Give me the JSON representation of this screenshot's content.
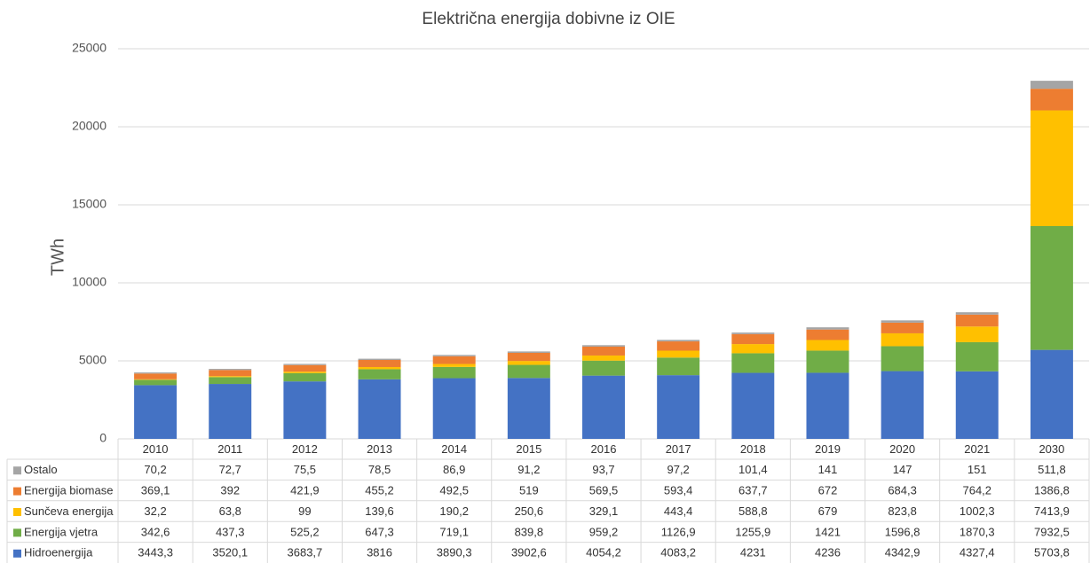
{
  "chart_data": {
    "type": "bar",
    "stacked": true,
    "title": "Električna energija dobivne iz OIE",
    "y_label": "TWh",
    "categories": [
      "2010",
      "2011",
      "2012",
      "2013",
      "2014",
      "2015",
      "2016",
      "2017",
      "2018",
      "2019",
      "2020",
      "2021",
      "2030"
    ],
    "ylim": [
      0,
      25000
    ],
    "yticks": [
      0,
      5000,
      10000,
      15000,
      20000,
      25000
    ],
    "grid": true,
    "series": [
      {
        "name": "Hidroenergija",
        "color": "#4472c4",
        "values": [
          3443.3,
          3520.1,
          3683.7,
          3816,
          3890.3,
          3902.6,
          4054.2,
          4083.2,
          4231,
          4236,
          4342.9,
          4327.4,
          5703.8
        ],
        "value_labels": [
          "3443,3",
          "3520,1",
          "3683,7",
          "3816",
          "3890,3",
          "3902,6",
          "4054,2",
          "4083,2",
          "4231",
          "4236",
          "4342,9",
          "4327,4",
          "5703,8"
        ]
      },
      {
        "name": "Energija vjetra",
        "color": "#70ad47",
        "values": [
          342.6,
          437.3,
          525.2,
          647.3,
          719.1,
          839.8,
          959.2,
          1126.9,
          1255.9,
          1421,
          1596.8,
          1870.3,
          7932.5
        ],
        "value_labels": [
          "342,6",
          "437,3",
          "525,2",
          "647,3",
          "719,1",
          "839,8",
          "959,2",
          "1126,9",
          "1255,9",
          "1421",
          "1596,8",
          "1870,3",
          "7932,5"
        ]
      },
      {
        "name": "Sunčeva energija",
        "color": "#ffc000",
        "values": [
          32.2,
          63.8,
          99,
          139.6,
          190.2,
          250.6,
          329.1,
          443.4,
          588.8,
          679,
          823.8,
          1002.3,
          7413.9
        ],
        "value_labels": [
          "32,2",
          "63,8",
          "99",
          "139,6",
          "190,2",
          "250,6",
          "329,1",
          "443,4",
          "588,8",
          "679",
          "823,8",
          "1002,3",
          "7413,9"
        ]
      },
      {
        "name": "Energija biomase",
        "color": "#ed7d31",
        "values": [
          369.1,
          392,
          421.9,
          455.2,
          492.5,
          519,
          569.5,
          593.4,
          637.7,
          672,
          684.3,
          764.2,
          1386.8
        ],
        "value_labels": [
          "369,1",
          "392",
          "421,9",
          "455,2",
          "492,5",
          "519",
          "569,5",
          "593,4",
          "637,7",
          "672",
          "684,3",
          "764,2",
          "1386,8"
        ]
      },
      {
        "name": "Ostalo",
        "color": "#a5a5a5",
        "values": [
          70.2,
          72.7,
          75.5,
          78.5,
          86.9,
          91.2,
          93.7,
          97.2,
          101.4,
          141,
          147,
          151,
          511.8
        ],
        "value_labels": [
          "70,2",
          "72,7",
          "75,5",
          "78,5",
          "86,9",
          "91,2",
          "93,7",
          "97,2",
          "101,4",
          "141",
          "147",
          "151",
          "511,8"
        ]
      }
    ]
  }
}
